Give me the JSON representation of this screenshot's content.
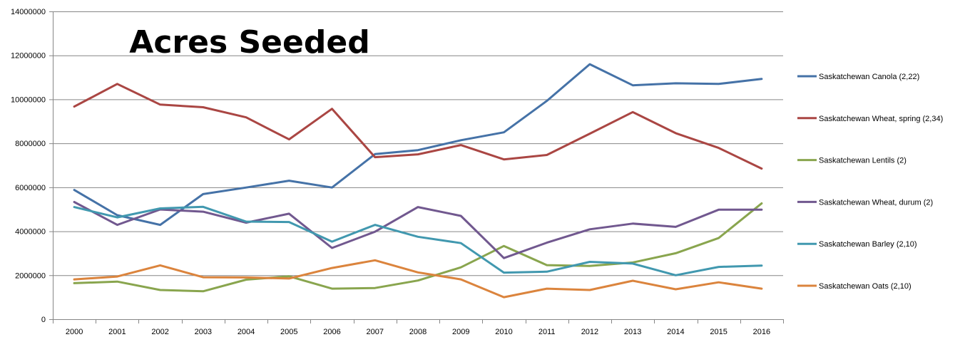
{
  "chart_data": {
    "type": "line",
    "title": "Acres Seeded",
    "xlabel": "",
    "ylabel": "",
    "ylim": [
      0,
      14000000
    ],
    "y_ticks": [
      0,
      2000000,
      4000000,
      6000000,
      8000000,
      10000000,
      12000000,
      14000000
    ],
    "y_tick_labels": [
      "0",
      "2000000",
      "4000000",
      "6000000",
      "8000000",
      "10000000",
      "12000000",
      "14000000"
    ],
    "grid": "horizontal",
    "legend_position": "right",
    "categories": [
      "2000",
      "2001",
      "2002",
      "2003",
      "2004",
      "2005",
      "2006",
      "2007",
      "2008",
      "2009",
      "2010",
      "2011",
      "2012",
      "2013",
      "2014",
      "2015",
      "2016"
    ],
    "series": [
      {
        "name": "Saskatchewan Canola (2,22)",
        "color": "#4572A7",
        "values": [
          5880000,
          4730000,
          4290000,
          5690000,
          5990000,
          6300000,
          5990000,
          7510000,
          7690000,
          8140000,
          8500000,
          9930000,
          11600000,
          10640000,
          10730000,
          10700000,
          10930000
        ]
      },
      {
        "name": "Saskatchewan Wheat, spring (2,34)",
        "color": "#AA4643",
        "values": [
          9670000,
          10700000,
          9760000,
          9640000,
          9180000,
          8180000,
          9570000,
          7370000,
          7500000,
          7920000,
          7270000,
          7470000,
          8440000,
          9420000,
          8460000,
          7790000,
          6850000
        ]
      },
      {
        "name": "Saskatchewan Lentils (2)",
        "color": "#89A54E",
        "values": [
          1640000,
          1710000,
          1330000,
          1270000,
          1800000,
          1950000,
          1390000,
          1420000,
          1760000,
          2360000,
          3330000,
          2460000,
          2420000,
          2580000,
          3000000,
          3690000,
          5270000
        ]
      },
      {
        "name": "Saskatchewan Wheat, durum (2)",
        "color": "#71588F",
        "values": [
          5330000,
          4290000,
          4990000,
          4890000,
          4390000,
          4800000,
          3240000,
          3980000,
          5100000,
          4700000,
          2780000,
          3480000,
          4090000,
          4350000,
          4200000,
          4980000,
          4980000
        ]
      },
      {
        "name": "Saskatchewan Barley (2,10)",
        "color": "#4198AF",
        "values": [
          5100000,
          4630000,
          5040000,
          5110000,
          4440000,
          4420000,
          3530000,
          4290000,
          3750000,
          3460000,
          2120000,
          2160000,
          2610000,
          2530000,
          2000000,
          2380000,
          2440000
        ]
      },
      {
        "name": "Saskatchewan Oats (2,10)",
        "color": "#DB843D",
        "values": [
          1810000,
          1940000,
          2450000,
          1910000,
          1900000,
          1850000,
          2330000,
          2680000,
          2130000,
          1810000,
          1000000,
          1390000,
          1330000,
          1750000,
          1360000,
          1680000,
          1390000
        ]
      }
    ]
  }
}
